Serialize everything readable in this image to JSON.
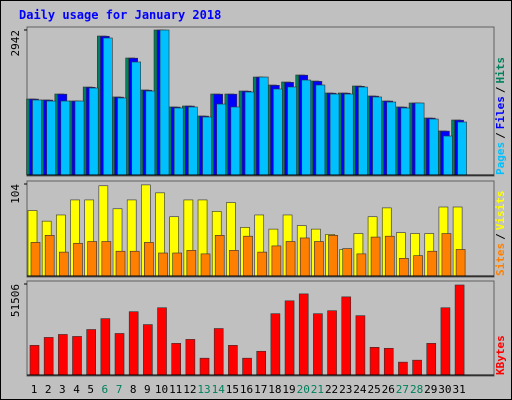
{
  "chart_data": [
    {
      "type": "bar",
      "title": "Daily usage for January 2018",
      "ylim": [
        0,
        2942
      ],
      "yticks": [
        2942
      ],
      "legend_separator": "/",
      "series": [
        {
          "name": "Hits",
          "color": "#00805c",
          "values": [
            1542,
            1522,
            1643,
            1501,
            1785,
            2820,
            1583,
            2374,
            1725,
            2942,
            1380,
            1400,
            1197,
            1643,
            1643,
            1704,
            1988,
            1826,
            1887,
            2029,
            1907,
            1664,
            1664,
            1806,
            1603,
            1501,
            1380,
            1461,
            1156,
            893,
            1116
          ]
        },
        {
          "name": "Files",
          "color": "#0000ff",
          "values": [
            1540,
            1520,
            1640,
            1500,
            1780,
            2815,
            1580,
            2370,
            1720,
            2940,
            1378,
            1398,
            1195,
            1640,
            1640,
            1700,
            1985,
            1820,
            1880,
            2025,
            1900,
            1660,
            1660,
            1800,
            1600,
            1500,
            1378,
            1460,
            1154,
            890,
            1112
          ]
        },
        {
          "name": "Pages",
          "color": "#00c0ff",
          "values": [
            1522,
            1501,
            1501,
            1501,
            1765,
            2780,
            1563,
            2293,
            1704,
            2942,
            1360,
            1380,
            1177,
            1440,
            1380,
            1684,
            1988,
            1745,
            1786,
            1927,
            1826,
            1643,
            1643,
            1785,
            1583,
            1481,
            1360,
            1461,
            1136,
            791,
            1075
          ]
        }
      ]
    },
    {
      "type": "bar",
      "ylim": [
        0,
        104
      ],
      "yticks": [
        104
      ],
      "legend_separator": "/",
      "series": [
        {
          "name": "Visits",
          "color": "#ffff00",
          "values": [
            74,
            62,
            69,
            86,
            86,
            102,
            76,
            86,
            103,
            94,
            67,
            86,
            86,
            73,
            83,
            55,
            69,
            53,
            69,
            57,
            53,
            47,
            30,
            48,
            67,
            77,
            49,
            48,
            48,
            78,
            78
          ]
        },
        {
          "name": "Sites",
          "color": "#ff8000",
          "values": [
            38,
            46,
            27,
            37,
            39,
            39,
            28,
            28,
            38,
            26,
            26,
            29,
            25,
            46,
            29,
            45,
            27,
            34,
            39,
            43,
            39,
            46,
            31,
            25,
            44,
            45,
            20,
            23,
            28,
            48,
            30
          ]
        }
      ]
    },
    {
      "type": "bar",
      "ylim": [
        0,
        51506
      ],
      "yticks": [
        51506
      ],
      "categories": [
        "1",
        "2",
        "3",
        "4",
        "5",
        "6",
        "7",
        "8",
        "9",
        "10",
        "11",
        "12",
        "13",
        "14",
        "15",
        "16",
        "17",
        "18",
        "19",
        "20",
        "21",
        "22",
        "23",
        "24",
        "25",
        "26",
        "27",
        "28",
        "29",
        "30",
        "31"
      ],
      "category_colors": [
        "#000000",
        "#000000",
        "#000000",
        "#000000",
        "#000000",
        "#00805c",
        "#00805c",
        "#000000",
        "#000000",
        "#000000",
        "#000000",
        "#000000",
        "#00805c",
        "#00805c",
        "#000000",
        "#000000",
        "#000000",
        "#000000",
        "#000000",
        "#00805c",
        "#00805c",
        "#000000",
        "#000000",
        "#000000",
        "#000000",
        "#000000",
        "#00805c",
        "#00805c",
        "#000000",
        "#000000",
        "#000000"
      ],
      "series": [
        {
          "name": "KBytes",
          "color": "#ff0000",
          "values": [
            16795,
            21274,
            22954,
            21834,
            25753,
            31911,
            23514,
            35830,
            28552,
            38069,
            17915,
            20154,
            9517,
            26313,
            16795,
            9517,
            13436,
            34710,
            41988,
            45907,
            34710,
            36390,
            44227,
            33590,
            15675,
            15116,
            7278,
            8398,
            17915,
            38069,
            50946
          ]
        }
      ]
    }
  ]
}
